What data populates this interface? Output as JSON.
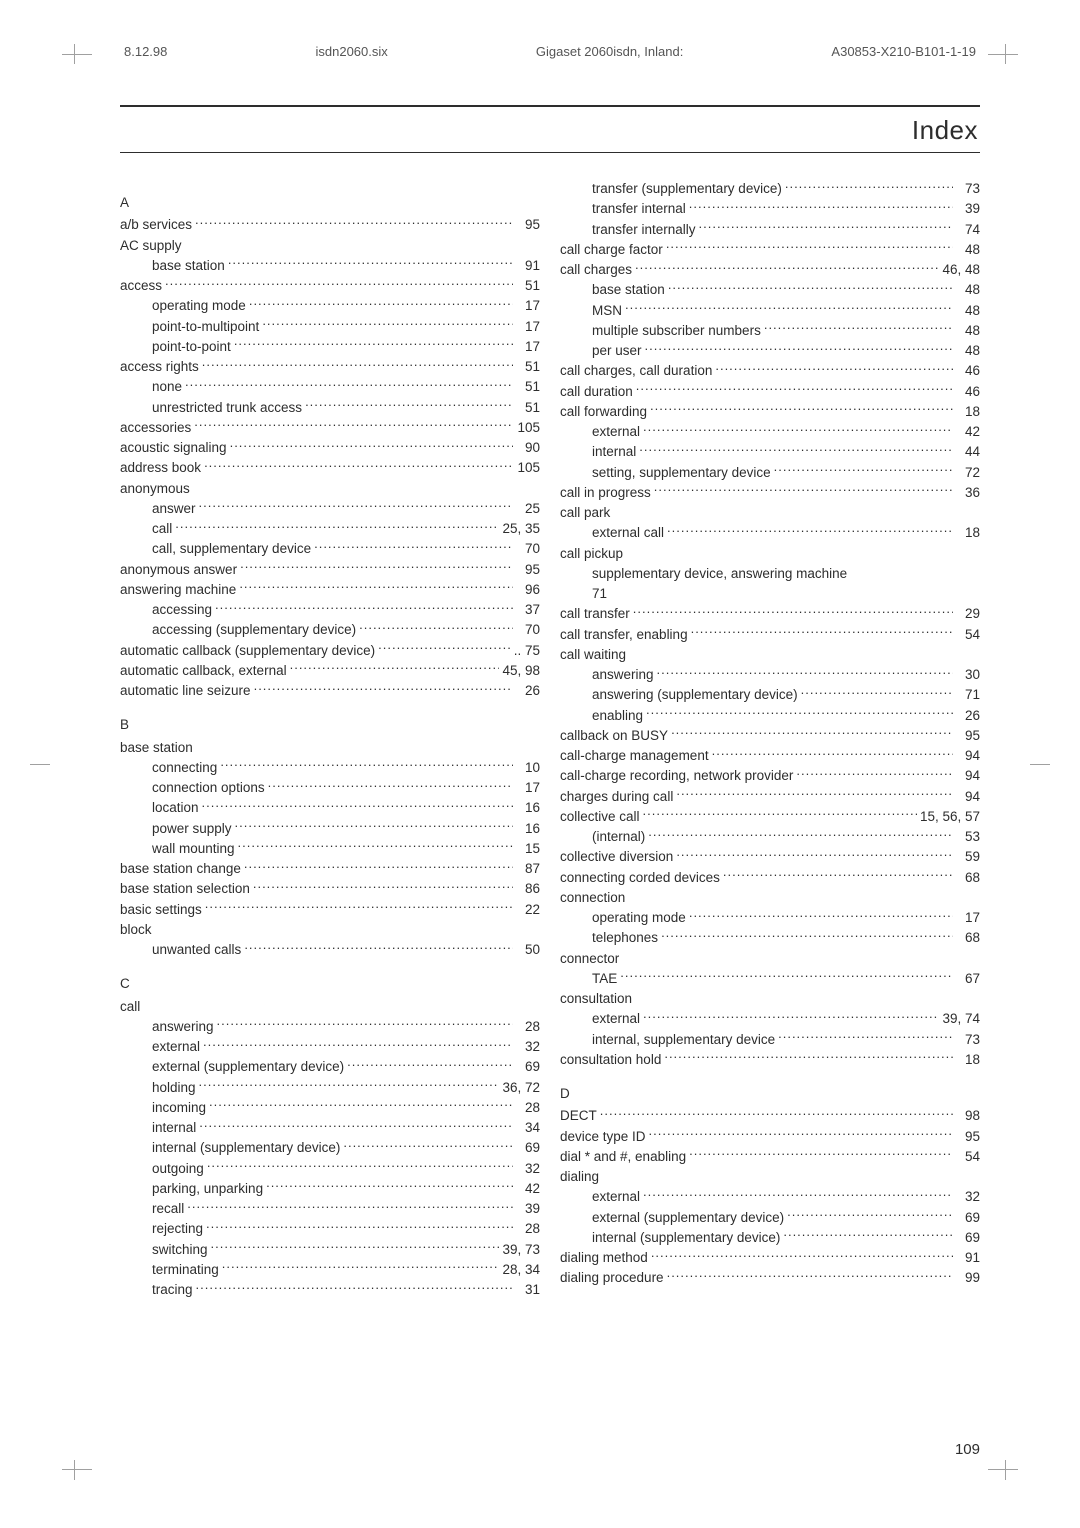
{
  "meta": {
    "date": "8.12.98",
    "file": "isdn2060.six",
    "product": "Gigaset 2060isdn, Inland:",
    "code": "A30853-X210-B101-1-19",
    "title": "Index",
    "page_number": "109"
  },
  "left": [
    {
      "type": "letter",
      "text": "A"
    },
    {
      "type": "entry",
      "indent": 0,
      "label": "a/b services",
      "num": "95"
    },
    {
      "type": "plain",
      "indent": 0,
      "label": "AC supply"
    },
    {
      "type": "entry",
      "indent": 1,
      "label": "base station",
      "num": "91"
    },
    {
      "type": "entry",
      "indent": 0,
      "label": "access",
      "num": "51"
    },
    {
      "type": "entry",
      "indent": 1,
      "label": "operating mode",
      "num": "17"
    },
    {
      "type": "entry",
      "indent": 1,
      "label": "point-to-multipoint",
      "num": "17"
    },
    {
      "type": "entry",
      "indent": 1,
      "label": "point-to-point",
      "num": "17"
    },
    {
      "type": "entry",
      "indent": 0,
      "label": "access rights",
      "num": "51"
    },
    {
      "type": "entry",
      "indent": 1,
      "label": "none",
      "num": "51"
    },
    {
      "type": "entry",
      "indent": 1,
      "label": "unrestricted trunk access",
      "num": "51"
    },
    {
      "type": "entry",
      "indent": 0,
      "label": "accessories",
      "num": "105"
    },
    {
      "type": "entry",
      "indent": 0,
      "label": "acoustic signaling",
      "num": "90"
    },
    {
      "type": "entry",
      "indent": 0,
      "label": "address book",
      "num": "105"
    },
    {
      "type": "plain",
      "indent": 0,
      "label": "anonymous"
    },
    {
      "type": "entry",
      "indent": 1,
      "label": "answer",
      "num": "25"
    },
    {
      "type": "entry",
      "indent": 1,
      "label": "call",
      "num": "25, 35"
    },
    {
      "type": "entry",
      "indent": 1,
      "label": "call, supplementary device",
      "num": "70"
    },
    {
      "type": "entry",
      "indent": 0,
      "label": "anonymous answer",
      "num": "95"
    },
    {
      "type": "entry",
      "indent": 0,
      "label": "answering machine",
      "num": "96"
    },
    {
      "type": "entry",
      "indent": 1,
      "label": "accessing",
      "num": "37"
    },
    {
      "type": "entry",
      "indent": 1,
      "label": "accessing (supplementary device)",
      "num": "70"
    },
    {
      "type": "entry",
      "indent": 0,
      "label": "automatic callback (supplementary device)",
      "num": ".. 75"
    },
    {
      "type": "entry",
      "indent": 0,
      "label": "automatic callback, external",
      "num": "45, 98"
    },
    {
      "type": "entry",
      "indent": 0,
      "label": "automatic line seizure",
      "num": "26"
    },
    {
      "type": "letter",
      "text": "B"
    },
    {
      "type": "plain",
      "indent": 0,
      "label": "base station"
    },
    {
      "type": "entry",
      "indent": 1,
      "label": "connecting",
      "num": "10"
    },
    {
      "type": "entry",
      "indent": 1,
      "label": "connection options",
      "num": "17"
    },
    {
      "type": "entry",
      "indent": 1,
      "label": "location",
      "num": "16"
    },
    {
      "type": "entry",
      "indent": 1,
      "label": "power supply",
      "num": "16"
    },
    {
      "type": "entry",
      "indent": 1,
      "label": "wall mounting",
      "num": "15"
    },
    {
      "type": "entry",
      "indent": 0,
      "label": "base station change",
      "num": "87"
    },
    {
      "type": "entry",
      "indent": 0,
      "label": "base station selection",
      "num": "86"
    },
    {
      "type": "entry",
      "indent": 0,
      "label": "basic settings",
      "num": "22"
    },
    {
      "type": "plain",
      "indent": 0,
      "label": "block"
    },
    {
      "type": "entry",
      "indent": 1,
      "label": "unwanted calls",
      "num": "50"
    },
    {
      "type": "letter",
      "text": "C"
    },
    {
      "type": "plain",
      "indent": 0,
      "label": "call"
    },
    {
      "type": "entry",
      "indent": 1,
      "label": "answering",
      "num": "28"
    },
    {
      "type": "entry",
      "indent": 1,
      "label": "external",
      "num": "32"
    },
    {
      "type": "entry",
      "indent": 1,
      "label": "external (supplementary device)",
      "num": "69"
    },
    {
      "type": "entry",
      "indent": 1,
      "label": "holding",
      "num": "36, 72"
    },
    {
      "type": "entry",
      "indent": 1,
      "label": "incoming",
      "num": "28"
    },
    {
      "type": "entry",
      "indent": 1,
      "label": "internal",
      "num": "34"
    },
    {
      "type": "entry",
      "indent": 1,
      "label": "internal (supplementary device)",
      "num": "69"
    },
    {
      "type": "entry",
      "indent": 1,
      "label": "outgoing",
      "num": "32"
    },
    {
      "type": "entry",
      "indent": 1,
      "label": "parking, unparking",
      "num": "42"
    },
    {
      "type": "entry",
      "indent": 1,
      "label": "recall",
      "num": "39"
    },
    {
      "type": "entry",
      "indent": 1,
      "label": "rejecting",
      "num": "28"
    },
    {
      "type": "entry",
      "indent": 1,
      "label": "switching",
      "num": "39, 73"
    },
    {
      "type": "entry",
      "indent": 1,
      "label": "terminating",
      "num": "28, 34"
    },
    {
      "type": "entry",
      "indent": 1,
      "label": "tracing",
      "num": "31"
    }
  ],
  "right": [
    {
      "type": "entry",
      "indent": 1,
      "label": "transfer (supplementary device)",
      "num": "73"
    },
    {
      "type": "entry",
      "indent": 1,
      "label": "transfer internal",
      "num": "39"
    },
    {
      "type": "entry",
      "indent": 1,
      "label": "transfer internally",
      "num": "74"
    },
    {
      "type": "entry",
      "indent": 0,
      "label": "call charge factor",
      "num": "48"
    },
    {
      "type": "entry",
      "indent": 0,
      "label": "call charges",
      "num": "46, 48"
    },
    {
      "type": "entry",
      "indent": 1,
      "label": "base station",
      "num": "48"
    },
    {
      "type": "entry",
      "indent": 1,
      "label": "MSN",
      "num": "48"
    },
    {
      "type": "entry",
      "indent": 1,
      "label": "multiple subscriber numbers",
      "num": "48"
    },
    {
      "type": "entry",
      "indent": 1,
      "label": "per user",
      "num": "48"
    },
    {
      "type": "entry",
      "indent": 0,
      "label": "call charges, call duration",
      "num": "46"
    },
    {
      "type": "entry",
      "indent": 0,
      "label": "call duration",
      "num": "46"
    },
    {
      "type": "entry",
      "indent": 0,
      "label": "call forwarding",
      "num": "18"
    },
    {
      "type": "entry",
      "indent": 1,
      "label": "external",
      "num": "42"
    },
    {
      "type": "entry",
      "indent": 1,
      "label": "internal",
      "num": "44"
    },
    {
      "type": "entry",
      "indent": 1,
      "label": "setting, supplementary device",
      "num": "72"
    },
    {
      "type": "entry",
      "indent": 0,
      "label": "call in progress",
      "num": "36"
    },
    {
      "type": "plain",
      "indent": 0,
      "label": "call park"
    },
    {
      "type": "entry",
      "indent": 1,
      "label": "external call",
      "num": "18"
    },
    {
      "type": "plain",
      "indent": 0,
      "label": "call pickup"
    },
    {
      "type": "plain",
      "indent": 1,
      "label": "supplementary device, answering machine"
    },
    {
      "type": "plain",
      "indent": 1,
      "label": "71"
    },
    {
      "type": "entry",
      "indent": 0,
      "label": "call transfer",
      "num": "29"
    },
    {
      "type": "entry",
      "indent": 0,
      "label": "call transfer, enabling",
      "num": "54"
    },
    {
      "type": "plain",
      "indent": 0,
      "label": "call waiting"
    },
    {
      "type": "entry",
      "indent": 1,
      "label": "answering",
      "num": "30"
    },
    {
      "type": "entry",
      "indent": 1,
      "label": "answering (supplementary device)",
      "num": "71"
    },
    {
      "type": "entry",
      "indent": 1,
      "label": "enabling",
      "num": "26"
    },
    {
      "type": "entry",
      "indent": 0,
      "label": "callback on BUSY",
      "num": "95"
    },
    {
      "type": "entry",
      "indent": 0,
      "label": "call-charge management",
      "num": "94"
    },
    {
      "type": "entry",
      "indent": 0,
      "label": "call-charge recording, network provider",
      "num": "94"
    },
    {
      "type": "entry",
      "indent": 0,
      "label": "charges during call",
      "num": "94"
    },
    {
      "type": "entry",
      "indent": 0,
      "label": "collective call",
      "num": "15, 56, 57"
    },
    {
      "type": "entry",
      "indent": 1,
      "label": "(internal)",
      "num": "53"
    },
    {
      "type": "entry",
      "indent": 0,
      "label": "collective diversion",
      "num": "59"
    },
    {
      "type": "entry",
      "indent": 0,
      "label": "connecting corded devices",
      "num": "68"
    },
    {
      "type": "plain",
      "indent": 0,
      "label": "connection"
    },
    {
      "type": "entry",
      "indent": 1,
      "label": "operating mode",
      "num": "17"
    },
    {
      "type": "entry",
      "indent": 1,
      "label": "telephones",
      "num": "68"
    },
    {
      "type": "plain",
      "indent": 0,
      "label": "connector"
    },
    {
      "type": "entry",
      "indent": 1,
      "label": "TAE",
      "num": "67"
    },
    {
      "type": "plain",
      "indent": 0,
      "label": "consultation"
    },
    {
      "type": "entry",
      "indent": 1,
      "label": "external",
      "num": "39, 74"
    },
    {
      "type": "entry",
      "indent": 1,
      "label": "internal, supplementary device",
      "num": "73"
    },
    {
      "type": "entry",
      "indent": 0,
      "label": "consultation hold",
      "num": "18"
    },
    {
      "type": "letter",
      "text": "D"
    },
    {
      "type": "entry",
      "indent": 0,
      "label": "DECT",
      "num": "98"
    },
    {
      "type": "entry",
      "indent": 0,
      "label": "device type ID",
      "num": "95"
    },
    {
      "type": "entry",
      "indent": 0,
      "label": "dial * and #, enabling",
      "num": "54"
    },
    {
      "type": "plain",
      "indent": 0,
      "label": "dialing"
    },
    {
      "type": "entry",
      "indent": 1,
      "label": "external",
      "num": "32"
    },
    {
      "type": "entry",
      "indent": 1,
      "label": "external (supplementary device)",
      "num": "69"
    },
    {
      "type": "entry",
      "indent": 1,
      "label": "internal (supplementary device)",
      "num": "69"
    },
    {
      "type": "entry",
      "indent": 0,
      "label": "dialing method",
      "num": "91"
    },
    {
      "type": "entry",
      "indent": 0,
      "label": "dialing procedure",
      "num": "99"
    }
  ]
}
